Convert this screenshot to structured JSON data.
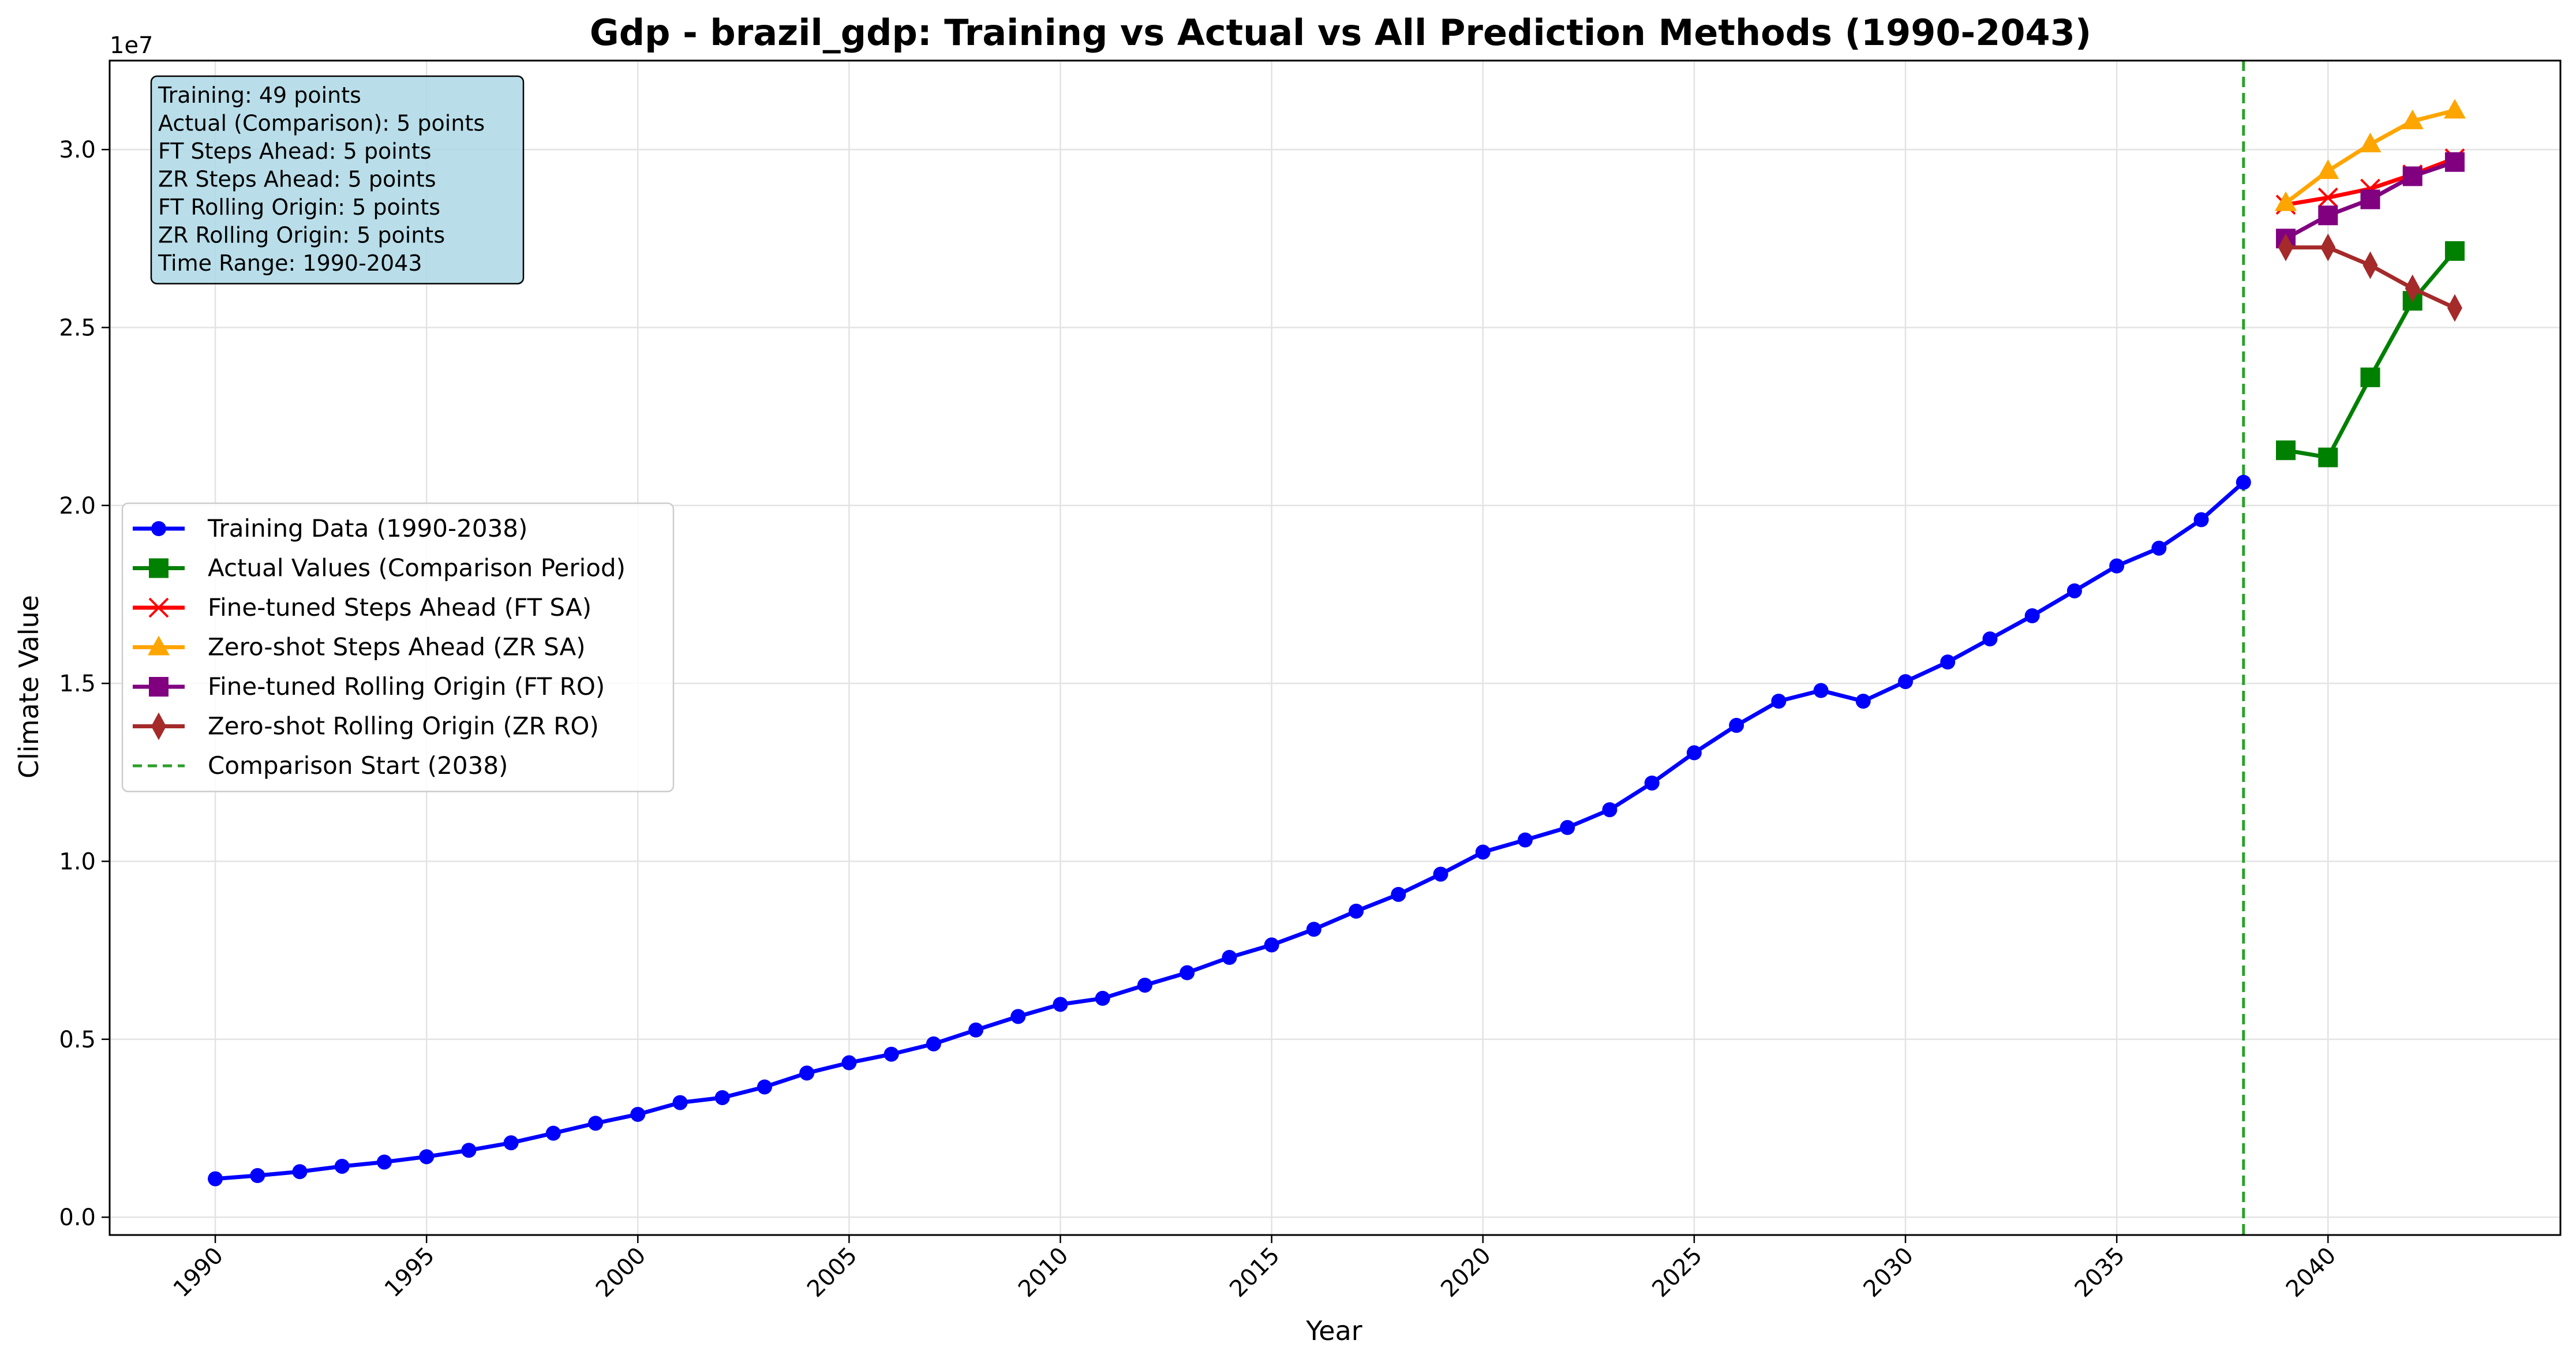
{
  "chart_data": {
    "type": "line",
    "title": "Gdp - brazil_gdp: Training vs Actual vs All Prediction Methods (1990-2043)",
    "xlabel": "Year",
    "ylabel": "Climate Value",
    "y_offset_label": "1e7",
    "xlim": [
      1987.5,
      2045.5
    ],
    "ylim": [
      -0.05,
      3.25
    ],
    "y_scale_factor": 10000000,
    "x_ticks": [
      1990,
      1995,
      2000,
      2005,
      2010,
      2015,
      2020,
      2025,
      2030,
      2035,
      2040
    ],
    "x_tick_labels": [
      "1990",
      "1995",
      "2000",
      "2005",
      "2010",
      "2015",
      "2020",
      "2025",
      "2030",
      "2035",
      "2040"
    ],
    "y_ticks": [
      0.0,
      0.5,
      1.0,
      1.5,
      2.0,
      2.5,
      3.0
    ],
    "y_tick_labels": [
      "0.0",
      "0.5",
      "1.0",
      "1.5",
      "2.0",
      "2.5",
      "3.0"
    ],
    "grid": true,
    "legend_position": "center-left",
    "series": [
      {
        "name": "Training Data (1990-2038)",
        "color": "#0000ff",
        "marker": "circle",
        "x": [
          1990,
          1991,
          1992,
          1993,
          1994,
          1995,
          1996,
          1997,
          1998,
          1999,
          2000,
          2001,
          2002,
          2003,
          2004,
          2005,
          2006,
          2007,
          2008,
          2009,
          2010,
          2011,
          2012,
          2013,
          2014,
          2015,
          2016,
          2017,
          2018,
          2019,
          2020,
          2021,
          2022,
          2023,
          2024,
          2025,
          2026,
          2027,
          2028,
          2029,
          2030,
          2031,
          2032,
          2033,
          2034,
          2035,
          2036,
          2037,
          2038
        ],
        "y": [
          0.108,
          0.117,
          0.128,
          0.143,
          0.155,
          0.17,
          0.188,
          0.209,
          0.236,
          0.264,
          0.289,
          0.322,
          0.336,
          0.366,
          0.405,
          0.434,
          0.458,
          0.487,
          0.526,
          0.564,
          0.598,
          0.615,
          0.652,
          0.687,
          0.73,
          0.765,
          0.809,
          0.86,
          0.907,
          0.964,
          1.026,
          1.06,
          1.095,
          1.145,
          1.22,
          1.305,
          1.382,
          1.45,
          1.48,
          1.45,
          1.505,
          1.56,
          1.625,
          1.69,
          1.76,
          1.83,
          1.88,
          1.96,
          2.065
        ]
      },
      {
        "name": "Actual Values (Comparison Period)",
        "color": "#008000",
        "marker": "square",
        "x": [
          2039,
          2040,
          2041,
          2042,
          2043
        ],
        "y": [
          2.155,
          2.135,
          2.36,
          2.575,
          2.715
        ]
      },
      {
        "name": "Fine-tuned Steps Ahead (FT SA)",
        "color": "#ff0000",
        "marker": "x",
        "x": [
          2039,
          2040,
          2041,
          2042,
          2043
        ],
        "y": [
          2.845,
          2.865,
          2.89,
          2.93,
          2.975
        ]
      },
      {
        "name": "Zero-shot Steps Ahead (ZR SA)",
        "color": "#ffa500",
        "marker": "triangle",
        "x": [
          2039,
          2040,
          2041,
          2042,
          2043
        ],
        "y": [
          2.85,
          2.94,
          3.015,
          3.08,
          3.11
        ]
      },
      {
        "name": "Fine-tuned Rolling Origin (FT RO)",
        "color": "#800080",
        "marker": "square",
        "x": [
          2039,
          2040,
          2041,
          2042,
          2043
        ],
        "y": [
          2.75,
          2.815,
          2.86,
          2.925,
          2.965
        ]
      },
      {
        "name": "Zero-shot Rolling Origin (ZR RO)",
        "color": "#a52a2a",
        "marker": "diamond",
        "x": [
          2039,
          2040,
          2041,
          2042,
          2043
        ],
        "y": [
          2.725,
          2.725,
          2.675,
          2.61,
          2.555
        ]
      }
    ],
    "vline": {
      "name": "Comparison Start (2038)",
      "x": 2038,
      "color": "#2ca02c"
    },
    "info_box": {
      "lines": [
        "Training: 49 points",
        "Actual (Comparison): 5 points",
        "FT Steps Ahead: 5 points",
        "ZR Steps Ahead: 5 points",
        "FT Rolling Origin: 5 points",
        "ZR Rolling Origin: 5 points",
        "Time Range: 1990-2043"
      ],
      "background": "#add8e6"
    }
  }
}
